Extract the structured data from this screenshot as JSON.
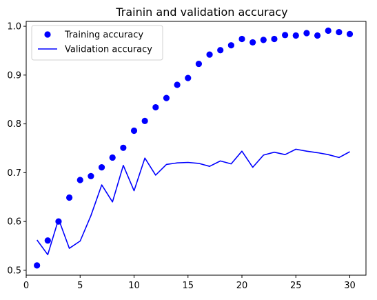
{
  "chart_data": {
    "type": "line",
    "title": "Trainin and validation accuracy",
    "xlabel": "",
    "ylabel": "",
    "xlim": [
      0,
      31.5
    ],
    "ylim": [
      0.49,
      1.01
    ],
    "xticks": [
      0,
      5,
      10,
      15,
      20,
      25,
      30
    ],
    "yticks": [
      0.5,
      0.6,
      0.7,
      0.8,
      0.9,
      1.0
    ],
    "ytick_labels": [
      "0.5",
      "0.6",
      "0.7",
      "0.8",
      "0.9",
      "1.0"
    ],
    "grid": false,
    "legend_position": "top-left",
    "x": [
      1,
      2,
      3,
      4,
      5,
      6,
      7,
      8,
      9,
      10,
      11,
      12,
      13,
      14,
      15,
      16,
      17,
      18,
      19,
      20,
      21,
      22,
      23,
      24,
      25,
      26,
      27,
      28,
      29,
      30
    ],
    "series": [
      {
        "name": "Training accuracy",
        "style": "markers",
        "color": "#0000ff",
        "values": [
          0.51,
          0.561,
          0.6,
          0.649,
          0.685,
          0.693,
          0.711,
          0.731,
          0.751,
          0.786,
          0.806,
          0.834,
          0.853,
          0.88,
          0.894,
          0.923,
          0.942,
          0.951,
          0.961,
          0.974,
          0.967,
          0.972,
          0.974,
          0.982,
          0.981,
          0.986,
          0.981,
          0.991,
          0.988,
          0.984
        ]
      },
      {
        "name": "Validation accuracy",
        "style": "line",
        "color": "#0000ff",
        "values": [
          0.562,
          0.532,
          0.605,
          0.545,
          0.56,
          0.612,
          0.675,
          0.64,
          0.715,
          0.663,
          0.73,
          0.695,
          0.717,
          0.72,
          0.721,
          0.719,
          0.713,
          0.724,
          0.718,
          0.744,
          0.711,
          0.736,
          0.742,
          0.737,
          0.748,
          0.744,
          0.741,
          0.737,
          0.731,
          0.743
        ]
      }
    ]
  }
}
